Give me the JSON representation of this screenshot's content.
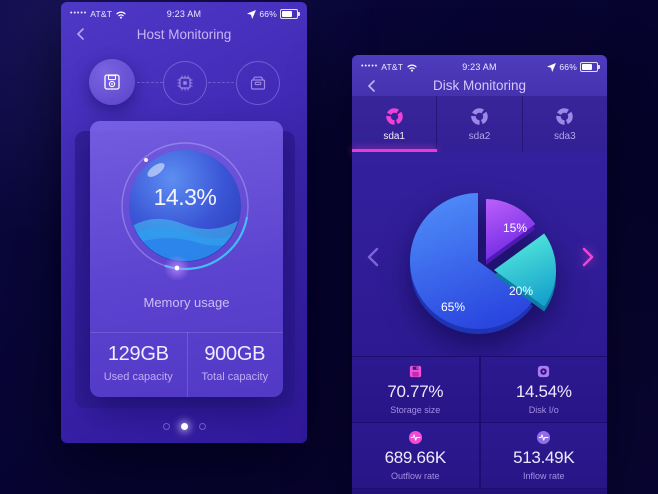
{
  "status_bar": {
    "signal": "•••••",
    "carrier": "AT&T",
    "time": "9:23 AM",
    "battery_pct": "66%"
  },
  "left_phone": {
    "title": "Host Monitoring",
    "steps": [
      {
        "icon": "floppy-disk-icon",
        "state": "active"
      },
      {
        "icon": "cpu-icon",
        "state": "idle"
      },
      {
        "icon": "archive-box-icon",
        "state": "idle"
      }
    ],
    "gauge_value": "14.3%",
    "gauge_label": "Memory usage",
    "stats": [
      {
        "value": "129GB",
        "label": "Used capacity"
      },
      {
        "value": "900GB",
        "label": "Total capacity"
      }
    ],
    "page_dots": {
      "count": 3,
      "active_index": 1
    }
  },
  "right_phone": {
    "title": "Disk Monitoring",
    "tabs": [
      {
        "label": "sda1",
        "active": true
      },
      {
        "label": "sda2",
        "active": false
      },
      {
        "label": "sda3",
        "active": false
      }
    ],
    "stats": [
      {
        "icon": "floppy-disk-icon",
        "value": "70.77%",
        "label": "Storage size"
      },
      {
        "icon": "disk-drive-icon",
        "value": "14.54%",
        "label": "Disk I/o"
      },
      {
        "icon": "outflow-pulse-icon",
        "value": "689.66K",
        "label": "Outflow rate"
      },
      {
        "icon": "inflow-pulse-icon",
        "value": "513.49K",
        "label": "Inflow rate"
      }
    ]
  },
  "chart_data": [
    {
      "type": "gauge",
      "title": "Memory usage",
      "value": 14.3,
      "unit": "%",
      "used_capacity": "129GB",
      "total_capacity": "900GB"
    },
    {
      "type": "pie",
      "title": "Disk usage sda1",
      "legend_position": "none",
      "labels_in_slices": true,
      "slices": [
        {
          "label": "15%",
          "value": 15,
          "radius": 61,
          "color": [
            "#b85cfa",
            "#6a28e2"
          ],
          "depth_color": "#4f1ab2",
          "offset": [
            2,
            -2
          ],
          "label_pos": [
            31,
            -30
          ]
        },
        {
          "label": "20%",
          "value": 20,
          "radius": 62,
          "color": [
            "#58eedd",
            "#17a3cd"
          ],
          "depth_color": "#0e7ba8",
          "offset": [
            10,
            8
          ],
          "label_pos": [
            37,
            33
          ],
          "exploded": true
        },
        {
          "label": "65%",
          "value": 65,
          "radius": 68,
          "color": [
            "#4f8df9",
            "#2a46df"
          ],
          "depth_color": "#1f33b5",
          "offset": [
            -6,
            -1
          ],
          "label_pos": [
            -31,
            49
          ]
        }
      ]
    }
  ]
}
